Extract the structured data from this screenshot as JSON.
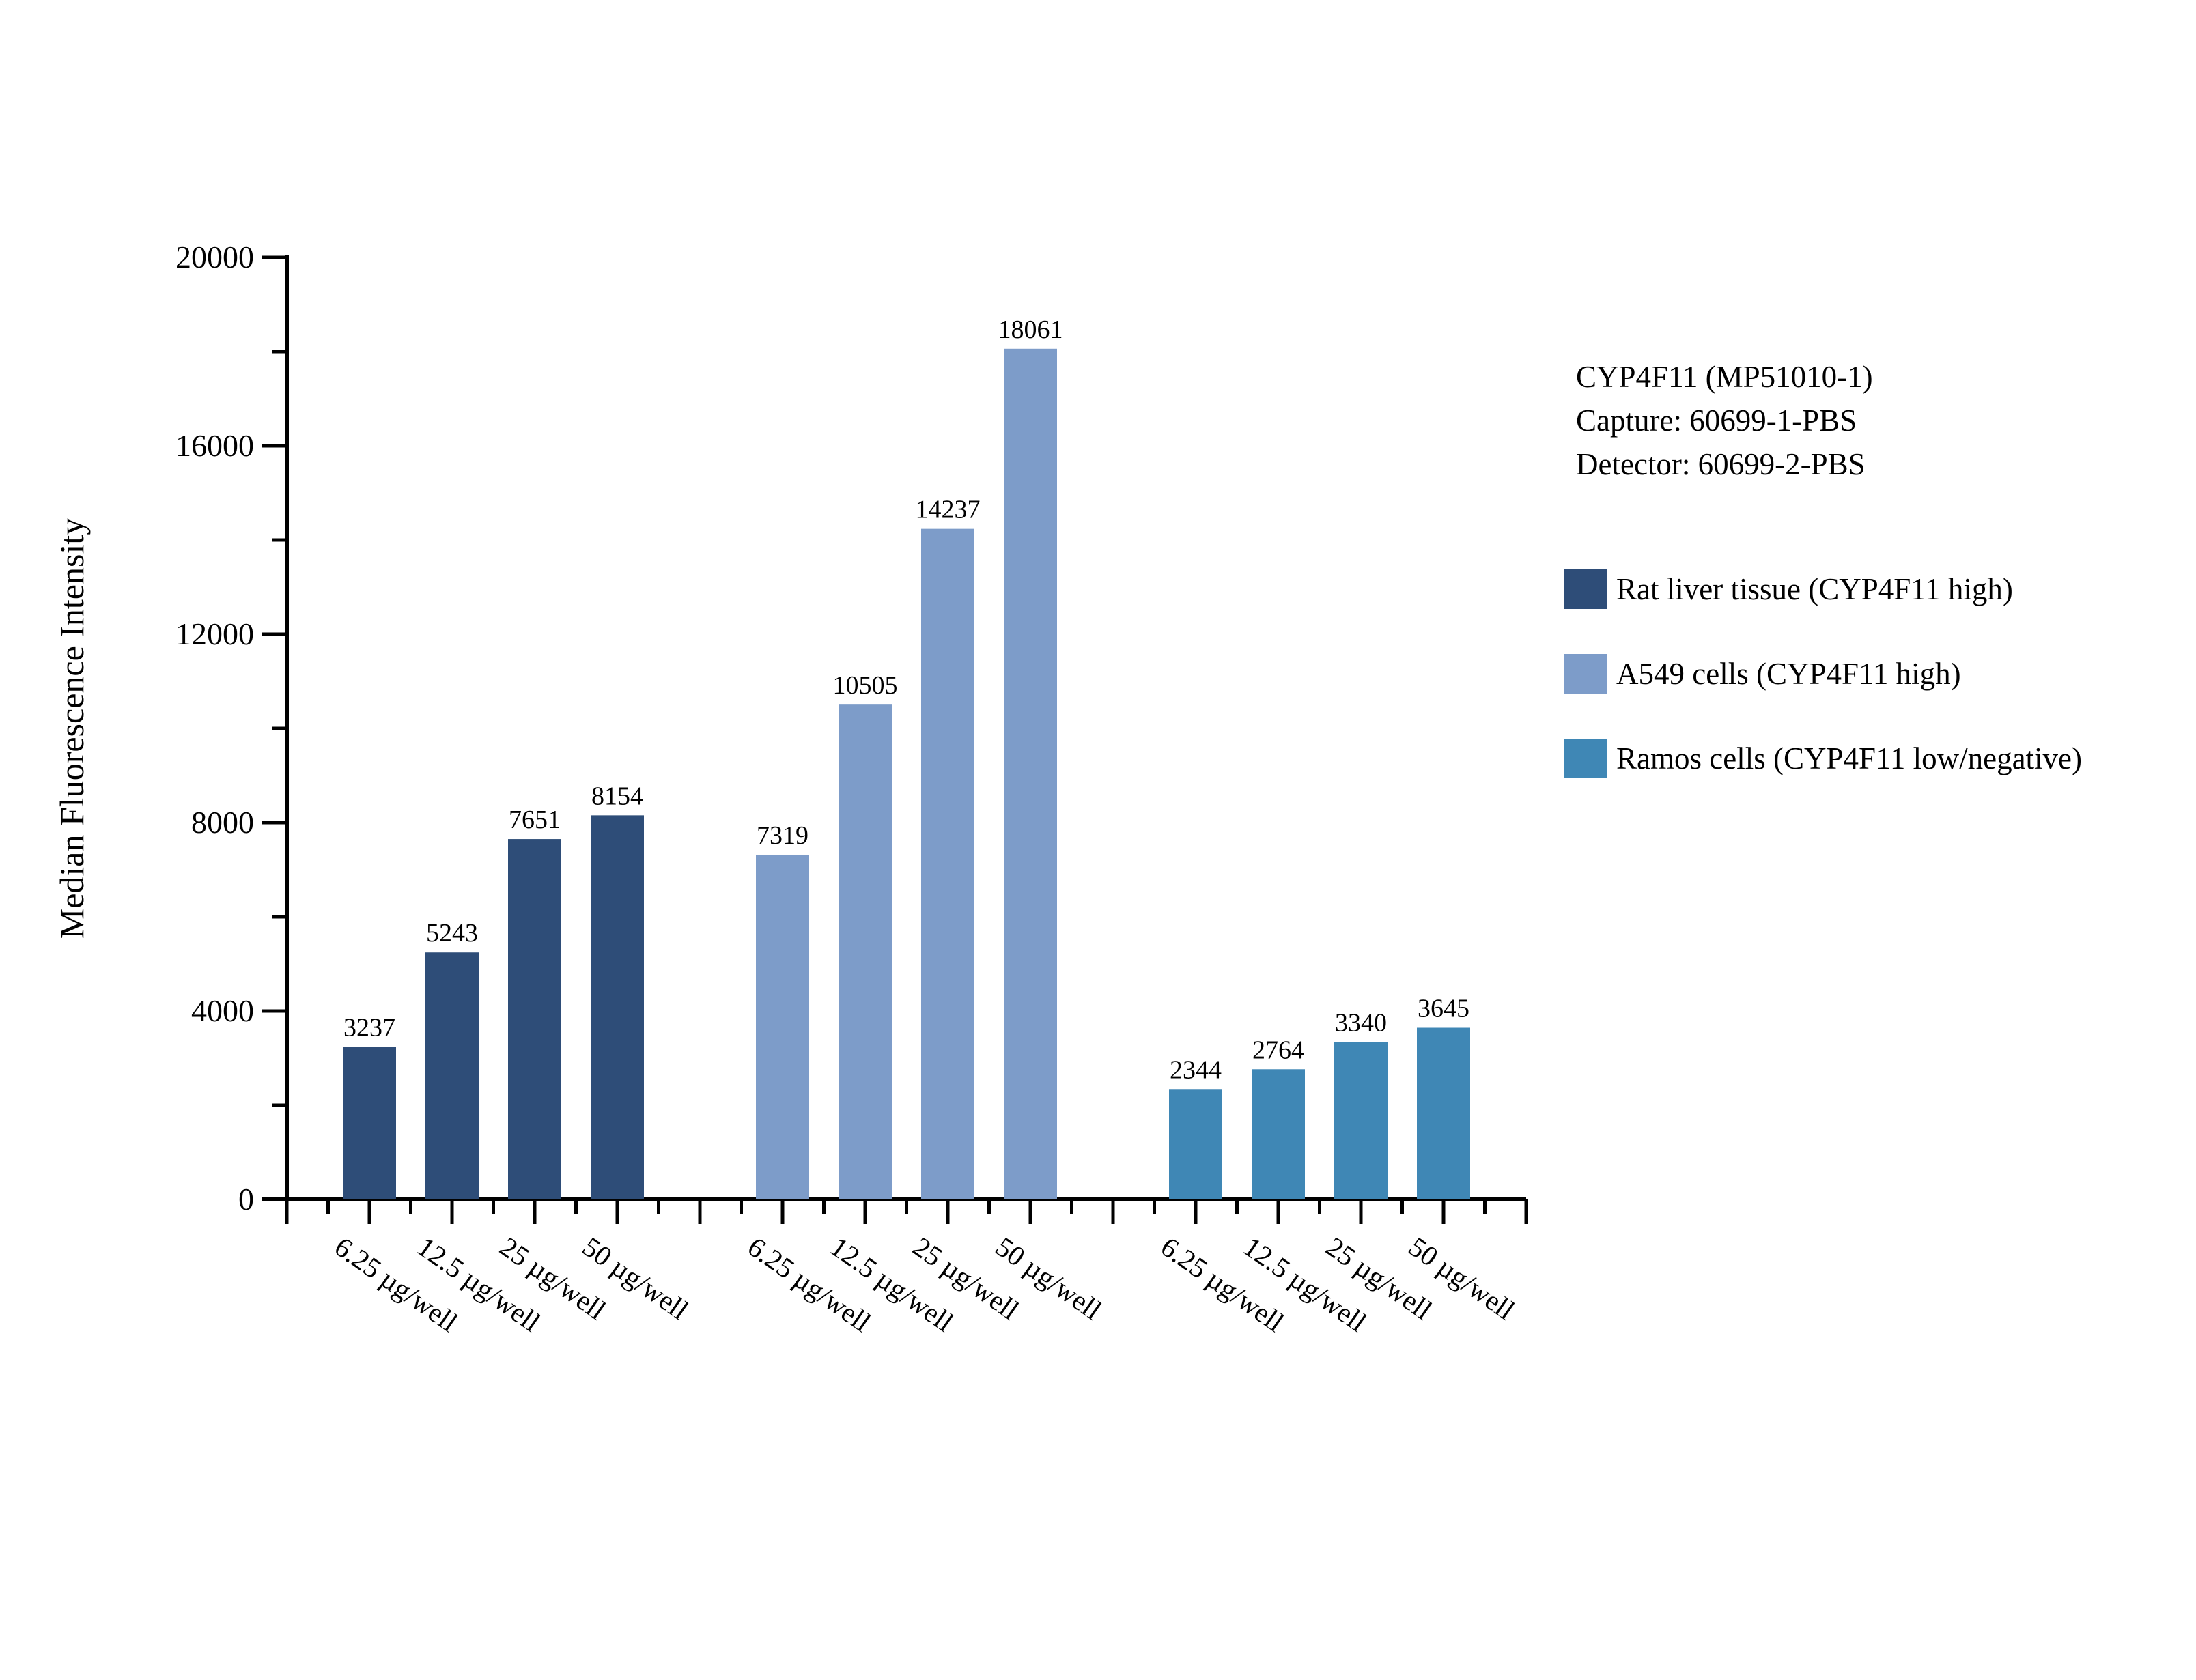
{
  "chart_data": {
    "type": "bar",
    "title": "",
    "xlabel": "",
    "ylabel": "Median Fluorescence Intensity",
    "ylim": [
      0,
      20000
    ],
    "y_major_step": 4000,
    "y_minor_step": 2000,
    "grid": false,
    "legend_position": "right",
    "categories": [
      "6.25 µg/well",
      "12.5 µg/well",
      "25 µg/well",
      "50 µg/well"
    ],
    "series": [
      {
        "name": "Rat liver tissue (CYP4F11 high)",
        "color": "#2E4D78",
        "values": [
          3237,
          5243,
          7651,
          8154
        ]
      },
      {
        "name": "A549 cells (CYP4F11 high)",
        "color": "#7D9CC9",
        "values": [
          7319,
          10505,
          14237,
          18061
        ]
      },
      {
        "name": "Ramos cells (CYP4F11 low/negative)",
        "color": "#3F87B5",
        "values": [
          2344,
          2764,
          3340,
          3645
        ]
      }
    ],
    "bar_value_labels": [
      [
        3237,
        5243,
        7651,
        8154
      ],
      [
        7319,
        10505,
        14237,
        18061
      ],
      [
        2344,
        2764,
        3340,
        3645
      ]
    ],
    "y_tick_labels": [
      "0",
      "4000",
      "8000",
      "12000",
      "16000",
      "20000"
    ]
  },
  "annotation": {
    "lines": [
      "CYP4F11 (MP51010-1)",
      "Capture: 60699-1-PBS",
      "Detector: 60699-2-PBS"
    ]
  },
  "colors": {
    "axis": "#000000",
    "text": "#000000",
    "background": "#FFFFFF"
  }
}
